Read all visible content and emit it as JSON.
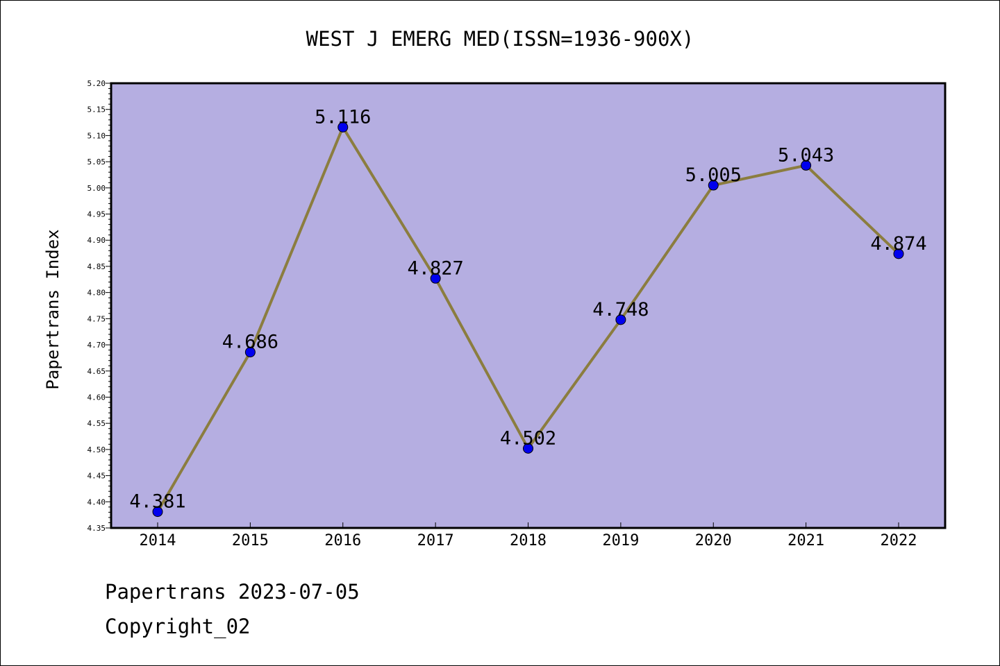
{
  "chart_data": {
    "type": "line",
    "title": "WEST J EMERG MED(ISSN=1936-900X)",
    "xlabel": "",
    "ylabel": "Papertrans Index",
    "categories": [
      "2014",
      "2015",
      "2016",
      "2017",
      "2018",
      "2019",
      "2020",
      "2021",
      "2022"
    ],
    "values": [
      4.381,
      4.686,
      5.116,
      4.827,
      4.502,
      4.748,
      5.005,
      5.043,
      4.874
    ],
    "data_labels": [
      "4.381",
      "4.686",
      "5.116",
      "4.827",
      "4.502",
      "4.748",
      "5.005",
      "5.043",
      "4.874"
    ],
    "ylim": [
      4.35,
      5.2
    ],
    "yticks": [
      "4.35",
      "4.40",
      "4.45",
      "4.50",
      "4.55",
      "4.60",
      "4.65",
      "4.70",
      "4.75",
      "4.80",
      "4.85",
      "4.90",
      "4.95",
      "5.00",
      "5.05",
      "5.10",
      "5.15",
      "5.20"
    ],
    "grid": false,
    "legend": "none"
  },
  "colors": {
    "plot_background": "#b5aee1",
    "line": "#8b7d3f",
    "marker": "#0000ee"
  },
  "footer": {
    "line1": "Papertrans 2023-07-05",
    "line2": "Copyright_02"
  }
}
